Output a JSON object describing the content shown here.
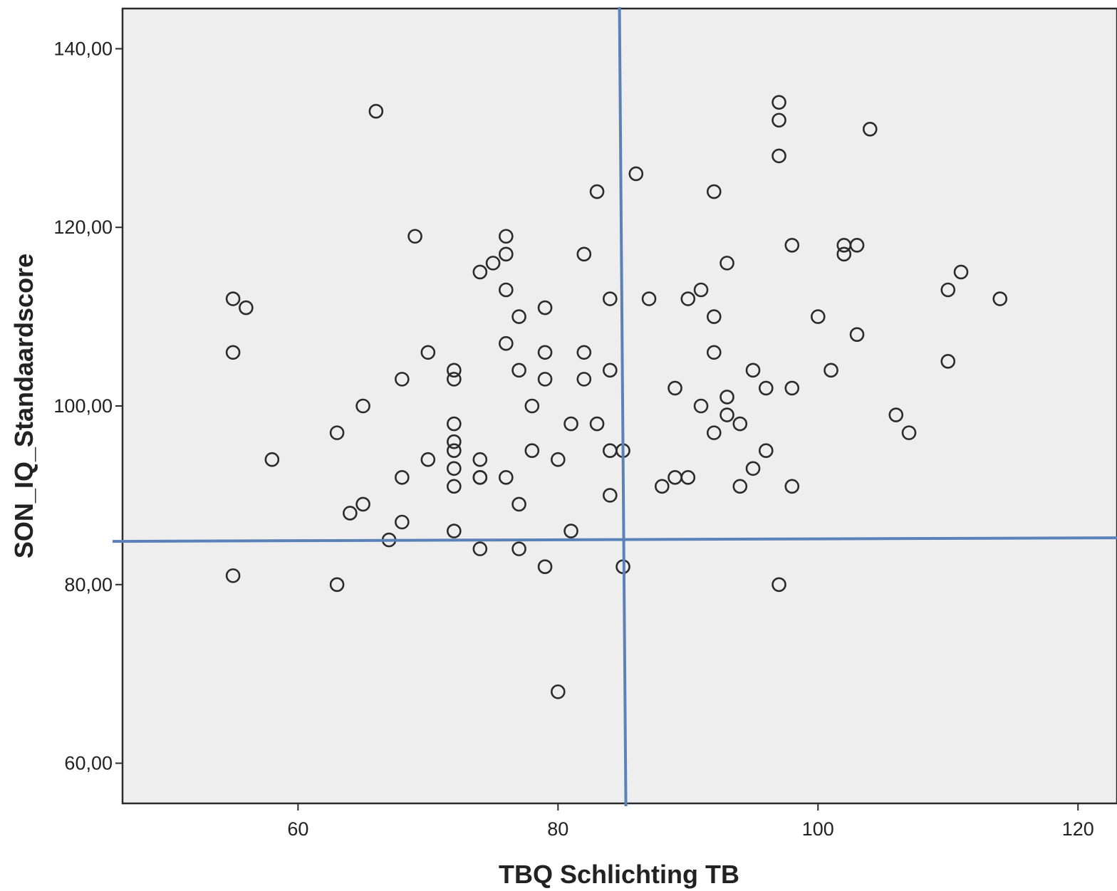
{
  "chart_data": {
    "type": "scatter",
    "title": "",
    "xlabel": "TBQ Schlichting TB",
    "ylabel": "SON_IQ_Standaardscore",
    "xlim": [
      46.5,
      123
    ],
    "ylim": [
      55.5,
      144.5
    ],
    "x_ticks": [
      60,
      80,
      100,
      120
    ],
    "x_tick_labels": [
      "60",
      "80",
      "100",
      "120"
    ],
    "y_ticks": [
      60,
      80,
      100,
      120,
      140
    ],
    "y_tick_labels": [
      "60,00",
      "80,00",
      "100,00",
      "120,00",
      "140,00"
    ],
    "reference_lines": {
      "vertical_x": 85,
      "horizontal_y": 85
    },
    "reference_line_color": "#5b82b8",
    "marker": "open-circle",
    "plot_background": "#eeeeee",
    "grid": false,
    "legend": "none",
    "points": [
      [
        55,
        112
      ],
      [
        56,
        111
      ],
      [
        55,
        106
      ],
      [
        55,
        81
      ],
      [
        58,
        94
      ],
      [
        63,
        97
      ],
      [
        63,
        80
      ],
      [
        64,
        88
      ],
      [
        65,
        100
      ],
      [
        65,
        89
      ],
      [
        66,
        133
      ],
      [
        67,
        85
      ],
      [
        68,
        103
      ],
      [
        68,
        92
      ],
      [
        68,
        87
      ],
      [
        69,
        119
      ],
      [
        70,
        106
      ],
      [
        70,
        94
      ],
      [
        72,
        104
      ],
      [
        72,
        103
      ],
      [
        72,
        98
      ],
      [
        72,
        96
      ],
      [
        72,
        95
      ],
      [
        72,
        93
      ],
      [
        72,
        91
      ],
      [
        72,
        86
      ],
      [
        74,
        115
      ],
      [
        74,
        94
      ],
      [
        74,
        92
      ],
      [
        74,
        92
      ],
      [
        74,
        84
      ],
      [
        75,
        116
      ],
      [
        76,
        119
      ],
      [
        76,
        117
      ],
      [
        76,
        113
      ],
      [
        76,
        107
      ],
      [
        76,
        92
      ],
      [
        77,
        110
      ],
      [
        77,
        104
      ],
      [
        77,
        89
      ],
      [
        77,
        84
      ],
      [
        78,
        100
      ],
      [
        78,
        95
      ],
      [
        79,
        111
      ],
      [
        79,
        106
      ],
      [
        79,
        103
      ],
      [
        79,
        82
      ],
      [
        80,
        94
      ],
      [
        80,
        68
      ],
      [
        81,
        98
      ],
      [
        81,
        86
      ],
      [
        82,
        117
      ],
      [
        82,
        106
      ],
      [
        82,
        103
      ],
      [
        83,
        124
      ],
      [
        83,
        98
      ],
      [
        84,
        112
      ],
      [
        84,
        104
      ],
      [
        84,
        95
      ],
      [
        84,
        90
      ],
      [
        85,
        95
      ],
      [
        85,
        82
      ],
      [
        86,
        126
      ],
      [
        87,
        112
      ],
      [
        88,
        91
      ],
      [
        89,
        102
      ],
      [
        89,
        92
      ],
      [
        90,
        112
      ],
      [
        90,
        92
      ],
      [
        91,
        113
      ],
      [
        91,
        100
      ],
      [
        92,
        124
      ],
      [
        92,
        110
      ],
      [
        92,
        106
      ],
      [
        92,
        97
      ],
      [
        93,
        116
      ],
      [
        93,
        101
      ],
      [
        93,
        99
      ],
      [
        94,
        98
      ],
      [
        94,
        91
      ],
      [
        95,
        104
      ],
      [
        95,
        93
      ],
      [
        96,
        102
      ],
      [
        96,
        95
      ],
      [
        97,
        134
      ],
      [
        97,
        132
      ],
      [
        97,
        128
      ],
      [
        97,
        80
      ],
      [
        98,
        118
      ],
      [
        98,
        102
      ],
      [
        98,
        91
      ],
      [
        100,
        110
      ],
      [
        101,
        104
      ],
      [
        102,
        118
      ],
      [
        102,
        117
      ],
      [
        103,
        118
      ],
      [
        103,
        108
      ],
      [
        104,
        131
      ],
      [
        106,
        99
      ],
      [
        107,
        97
      ],
      [
        110,
        113
      ],
      [
        110,
        105
      ],
      [
        111,
        115
      ],
      [
        114,
        112
      ]
    ]
  }
}
